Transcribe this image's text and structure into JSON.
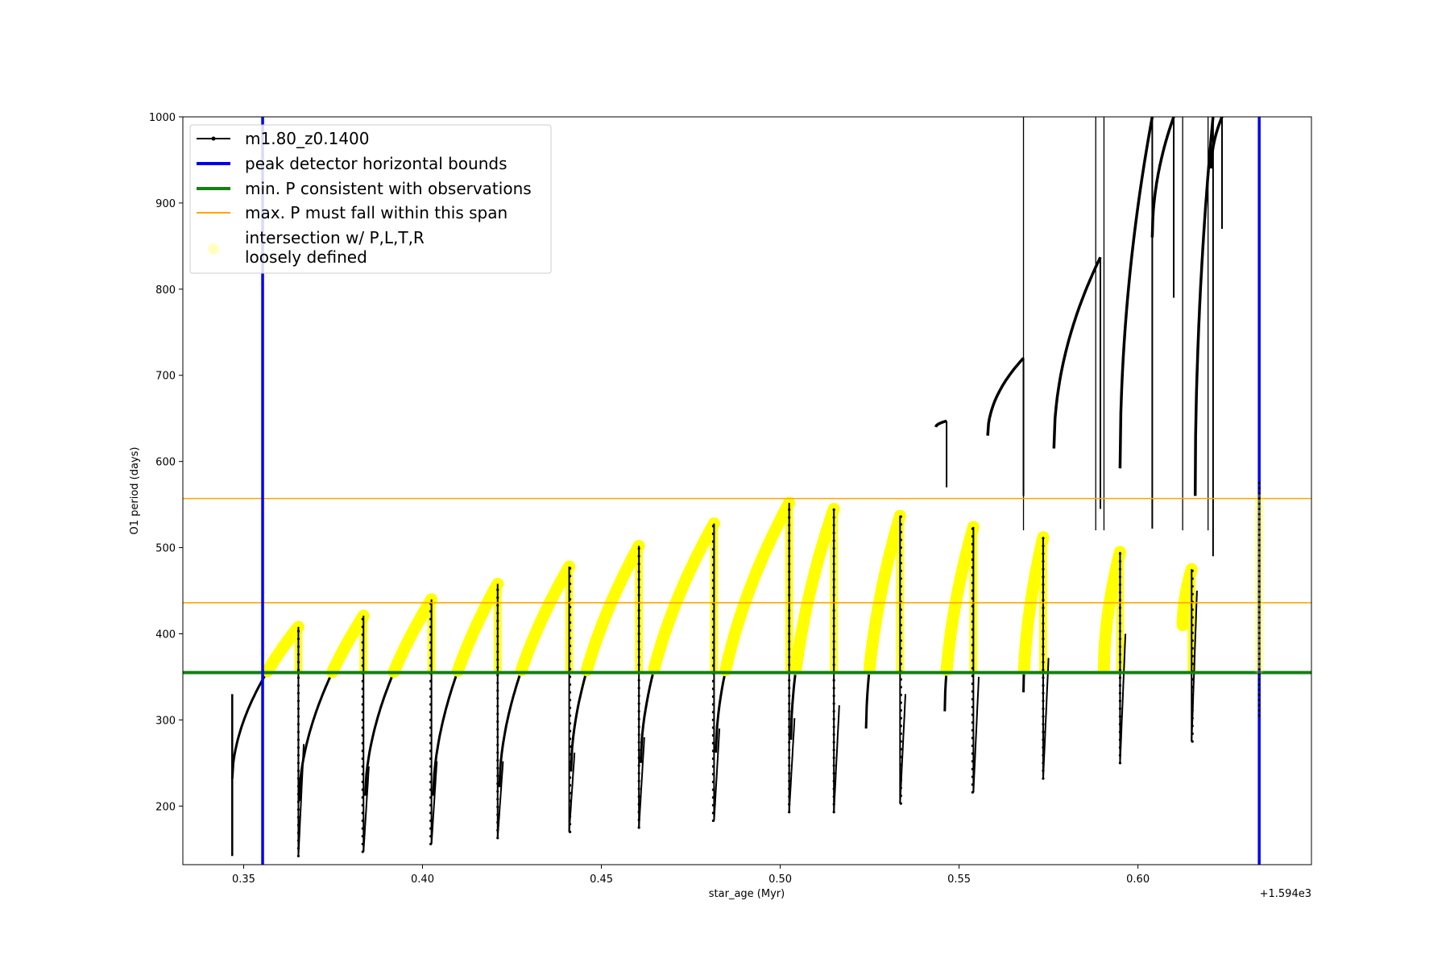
{
  "chart_data": {
    "type": "line",
    "title": "",
    "xlabel": "star_age (Myr)",
    "ylabel": "O1 period (days)",
    "x_offset_label": "+1.594e3",
    "xlim": [
      0.333,
      0.6485
    ],
    "ylim": [
      132,
      1000
    ],
    "xticks": [
      0.35,
      0.4,
      0.45,
      0.5,
      0.55,
      0.6
    ],
    "xtick_labels": [
      "0.35",
      "0.40",
      "0.45",
      "0.50",
      "0.55",
      "0.60"
    ],
    "yticks": [
      200,
      300,
      400,
      500,
      600,
      700,
      800,
      900,
      1000
    ],
    "ytick_labels": [
      "200",
      "300",
      "400",
      "500",
      "600",
      "700",
      "800",
      "900",
      "1000"
    ],
    "grid": false,
    "legend_position": "top-left",
    "colors": {
      "track": "#000000",
      "bounds": "#0000ee",
      "min_p": "#138013",
      "max_p": "#ffa500",
      "intersection": "#ffff00"
    },
    "legend": [
      {
        "label": "m1.80_z0.1400",
        "style": "track"
      },
      {
        "label": "peak detector horizontal bounds",
        "style": "bounds"
      },
      {
        "label": "min. P consistent with observations",
        "style": "min_p"
      },
      {
        "label": "max. P must fall within this span",
        "style": "max_p"
      },
      {
        "label": "intersection w/ P,L,T,R",
        "label2": "loosely defined",
        "style": "intersection"
      }
    ],
    "vertical_bounds": [
      0.3553,
      0.6339
    ],
    "min_p_line": 355,
    "max_p_lines": [
      436,
      557
    ],
    "pulses": [
      {
        "start": 0.3468,
        "base_start": 232,
        "peak": 408,
        "end": 0.3653,
        "drop_min": 142,
        "spike": 330
      },
      {
        "start": 0.3655,
        "base_start": 206,
        "peak": 421,
        "end": 0.3835,
        "drop_min": 147,
        "spike": 360
      },
      {
        "start": 0.384,
        "base_start": 212,
        "peak": 440,
        "end": 0.4025,
        "drop_min": 156,
        "spike": 380
      },
      {
        "start": 0.403,
        "base_start": 212,
        "peak": 458,
        "end": 0.421,
        "drop_min": 163,
        "spike": 410
      },
      {
        "start": 0.4215,
        "base_start": 222,
        "peak": 478,
        "end": 0.441,
        "drop_min": 170,
        "spike": 440
      },
      {
        "start": 0.4415,
        "base_start": 240,
        "peak": 502,
        "end": 0.4605,
        "drop_min": 175,
        "spike": 460
      },
      {
        "start": 0.461,
        "base_start": 250,
        "peak": 528,
        "end": 0.4815,
        "drop_min": 183,
        "spike": 470
      },
      {
        "start": 0.482,
        "base_start": 262,
        "peak": 552,
        "end": 0.5025,
        "drop_min": 193,
        "spike": 550
      },
      {
        "start": 0.503,
        "base_start": 277,
        "peak": 545,
        "end": 0.515,
        "drop_min": 193,
        "spike": 550
      },
      {
        "start": 0.524,
        "base_start": 290,
        "peak": 537,
        "end": 0.5335,
        "drop_min": 203,
        "spike": 540
      },
      {
        "start": 0.546,
        "base_start": 310,
        "peak": 524,
        "end": 0.554,
        "drop_min": 216,
        "spike": 530
      },
      {
        "start": 0.568,
        "base_start": 332,
        "peak": 512,
        "end": 0.5735,
        "drop_min": 232,
        "spike": 510
      },
      {
        "start": 0.5905,
        "base_start": 360,
        "peak": 495,
        "end": 0.595,
        "drop_min": 250,
        "spike": 505
      },
      {
        "start": 0.6125,
        "base_start": 410,
        "peak": 475,
        "end": 0.615,
        "drop_min": 275,
        "spike": 555
      }
    ],
    "upper_arcs": [
      {
        "start": 0.5435,
        "y_start": 640,
        "peak": 647,
        "end": 0.5465
      },
      {
        "start": 0.558,
        "y_start": 630,
        "peak": 720,
        "end": 0.568
      },
      {
        "start": 0.5765,
        "y_start": 615,
        "peak": 837,
        "end": 0.5895
      },
      {
        "start": 0.595,
        "y_start": 592,
        "peak": 1000,
        "end": 0.604
      },
      {
        "start": 0.604,
        "y_start": 860,
        "peak": 1000,
        "end": 0.61
      },
      {
        "start": 0.616,
        "y_start": 560,
        "peak": 1000,
        "end": 0.621
      },
      {
        "start": 0.6205,
        "y_start": 940,
        "peak": 1000,
        "end": 0.6235
      }
    ],
    "spikes_to_top": [
      0.568,
      0.5882,
      0.5905,
      0.6125,
      0.6196
    ],
    "bound_scatter": {
      "x": 0.6339,
      "y_min": 305,
      "y_max": 580
    }
  }
}
